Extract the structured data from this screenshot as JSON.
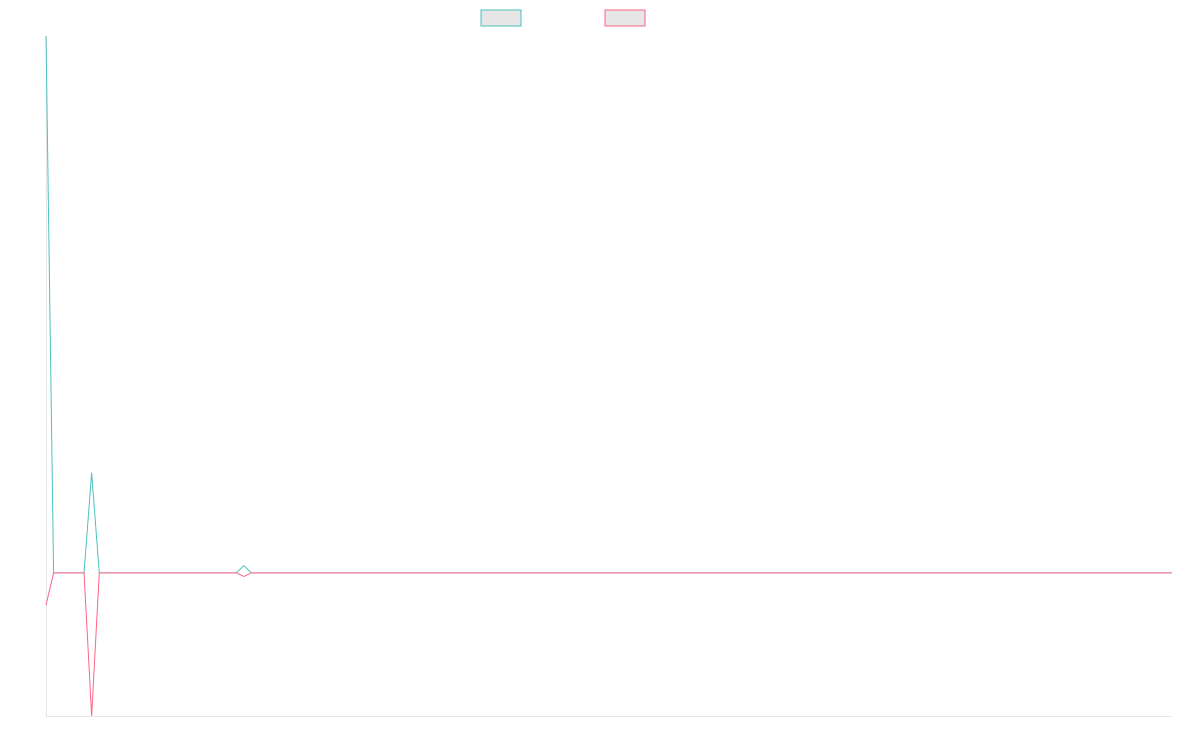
{
  "chart_data": {
    "type": "line",
    "title": "",
    "xlabel": "",
    "ylabel": "",
    "grid": false,
    "legend_position": "top-center",
    "x": [
      0,
      1,
      2,
      3,
      4,
      5,
      6,
      7,
      8,
      9,
      10,
      11,
      12,
      13,
      14,
      15,
      16,
      17,
      18,
      19,
      20,
      21,
      22,
      23,
      24,
      25,
      26,
      27,
      28,
      29,
      30,
      31,
      32,
      33,
      34,
      35,
      36,
      37,
      38,
      39,
      40,
      41,
      42,
      43,
      44,
      45,
      46,
      47,
      48,
      49,
      50,
      51,
      52,
      53,
      54,
      55,
      56,
      57,
      58,
      59,
      60,
      61,
      62,
      63,
      64,
      65,
      66,
      67,
      68,
      69,
      70,
      71,
      72,
      73,
      74,
      75,
      76,
      77,
      78,
      79,
      80,
      81,
      82,
      83,
      84,
      85,
      86,
      87,
      88,
      89,
      90,
      91,
      92,
      93,
      94,
      95,
      96,
      97,
      98,
      99,
      100,
      101,
      102,
      103,
      104,
      105,
      106,
      107,
      108,
      109,
      110,
      111,
      112,
      113,
      114,
      115,
      116,
      117,
      118,
      119,
      120,
      121,
      122,
      123,
      124,
      125,
      126,
      127,
      128,
      129,
      130,
      131,
      132,
      133,
      134,
      135,
      136,
      137,
      138,
      139,
      140,
      141,
      142,
      143,
      144,
      145,
      146,
      147,
      148
    ],
    "xlim": [
      0,
      148
    ],
    "ylim": [
      -2,
      7.5
    ],
    "series": [
      {
        "color": "#4bc0c0",
        "values": [
          7.5,
          0,
          0,
          0,
          0,
          0,
          1.4,
          0,
          0,
          0,
          0,
          0,
          0,
          0,
          0,
          0,
          0,
          0,
          0,
          0,
          0,
          0,
          0,
          0,
          0,
          0,
          0.1,
          0,
          0,
          0,
          0,
          0,
          0,
          0,
          0,
          0,
          0,
          0,
          0,
          0,
          0,
          0,
          0,
          0,
          0,
          0,
          0,
          0,
          0,
          0,
          0,
          0,
          0,
          0,
          0,
          0,
          0,
          0,
          0,
          0,
          0,
          0,
          0,
          0,
          0,
          0,
          0,
          0,
          0,
          0,
          0,
          0,
          0,
          0,
          0,
          0,
          0,
          0,
          0,
          0,
          0,
          0,
          0,
          0,
          0,
          0,
          0,
          0,
          0,
          0,
          0,
          0,
          0,
          0,
          0,
          0,
          0,
          0,
          0,
          0,
          0,
          0,
          0,
          0,
          0,
          0,
          0,
          0,
          0,
          0,
          0,
          0,
          0,
          0,
          0,
          0,
          0,
          0,
          0,
          0,
          0,
          0,
          0,
          0,
          0,
          0,
          0,
          0,
          0,
          0,
          0,
          0,
          0,
          0,
          0,
          0,
          0,
          0,
          0,
          0,
          0,
          0,
          0,
          0,
          0,
          0,
          0,
          0,
          0
        ]
      },
      {
        "color": "#ff6384",
        "values": [
          -0.45,
          0,
          0,
          0,
          0,
          0,
          -2,
          0,
          0,
          0,
          0,
          0,
          0,
          0,
          0,
          0,
          0,
          0,
          0,
          0,
          0,
          0,
          0,
          0,
          0,
          0,
          -0.05,
          0,
          0,
          0,
          0,
          0,
          0,
          0,
          0,
          0,
          0,
          0,
          0,
          0,
          0,
          0,
          0,
          0,
          0,
          0,
          0,
          0,
          0,
          0,
          0,
          0,
          0,
          0,
          0,
          0,
          0,
          0,
          0,
          0,
          0,
          0,
          0,
          0,
          0,
          0,
          0,
          0,
          0,
          0,
          0,
          0,
          0,
          0,
          0,
          0,
          0,
          0,
          0,
          0,
          0,
          0,
          0,
          0,
          0,
          0,
          0,
          0,
          0,
          0,
          0,
          0,
          0,
          0,
          0,
          0,
          0,
          0,
          0,
          0,
          0,
          0,
          0,
          0,
          0,
          0,
          0,
          0,
          0,
          0,
          0,
          0,
          0,
          0,
          0,
          0,
          0,
          0,
          0,
          0,
          0,
          0,
          0,
          0,
          0,
          0,
          0,
          0,
          0,
          0,
          0,
          0,
          0,
          0,
          0,
          0,
          0,
          0,
          0,
          0,
          0,
          0,
          0,
          0,
          0,
          0,
          0,
          0,
          0
        ]
      }
    ]
  }
}
